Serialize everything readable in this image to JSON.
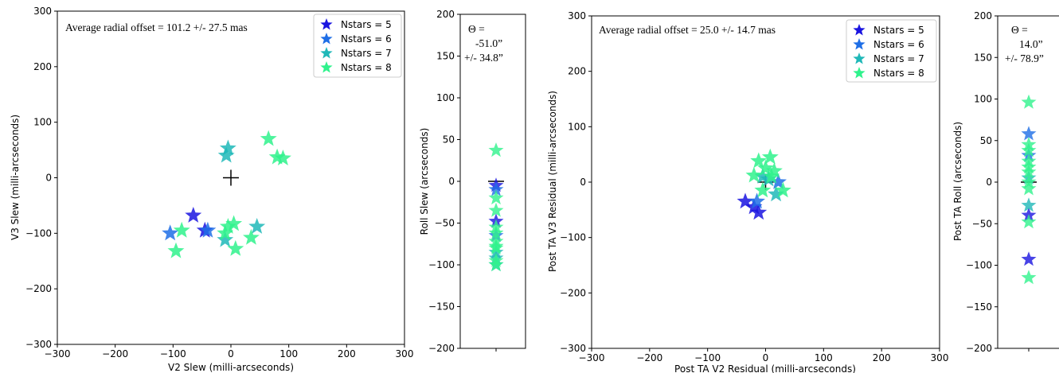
{
  "chart_data": [
    {
      "type": "scatter",
      "panel": "a",
      "xlabel": "V2 Slew (milli-arcseconds)",
      "ylabel": "V3 Slew (milli-arcseconds)",
      "xlim": [
        -300,
        300
      ],
      "ylim": [
        -300,
        300
      ],
      "xticks": [
        "−300",
        "−200",
        "−100",
        "0",
        "100",
        "200",
        "300"
      ],
      "yticks": [
        "300",
        "200",
        "100",
        "0",
        "−100",
        "−200",
        "−300"
      ],
      "annotation": "Average radial offset =  101.2 +/- 27.5 mas",
      "legend_position": "upper right",
      "target_marker": [
        0,
        0
      ],
      "series": [
        {
          "name": "Nstars = 5",
          "color": "#1a14e0",
          "points": [
            [
              -65,
              -68
            ],
            [
              -45,
              -95
            ]
          ]
        },
        {
          "name": "Nstars = 6",
          "color": "#1e6ee6",
          "points": [
            [
              -105,
              -100
            ],
            [
              -40,
              -95
            ]
          ]
        },
        {
          "name": "Nstars = 7",
          "color": "#1fb8b8",
          "points": [
            [
              -5,
              53
            ],
            [
              -8,
              40
            ],
            [
              -10,
              -112
            ],
            [
              45,
              -88
            ]
          ]
        },
        {
          "name": "Nstars = 8",
          "color": "#2ff28c",
          "points": [
            [
              65,
              70
            ],
            [
              80,
              37
            ],
            [
              90,
              35
            ],
            [
              -85,
              -95
            ],
            [
              -95,
              -132
            ],
            [
              -5,
              -88
            ],
            [
              5,
              -83
            ],
            [
              8,
              -128
            ],
            [
              35,
              -108
            ],
            [
              -10,
              -100
            ]
          ]
        }
      ]
    },
    {
      "type": "scatter",
      "panel": "b",
      "ylabel": "Roll Slew (arcseconds)",
      "ylim": [
        -200,
        200
      ],
      "yticks": [
        "200",
        "150",
        "100",
        "50",
        "0",
        "−50",
        "−100",
        "−150",
        "−200"
      ],
      "annotation": [
        "Θ  =",
        "-51.0”",
        "+/- 34.8”"
      ],
      "target_marker": [
        0,
        0
      ],
      "series": [
        {
          "name": "Nstars = 5",
          "color": "#1a14e0",
          "values": [
            -5,
            -48
          ]
        },
        {
          "name": "Nstars = 6",
          "color": "#1e6ee6",
          "values": [
            -10,
            -65
          ]
        },
        {
          "name": "Nstars = 7",
          "color": "#1fb8b8",
          "values": [
            -85,
            -100,
            -92
          ]
        },
        {
          "name": "Nstars = 8",
          "color": "#2ff28c",
          "values": [
            37,
            -20,
            -35,
            -55,
            -62,
            -72,
            -78,
            -80,
            -95,
            -100
          ]
        }
      ]
    },
    {
      "type": "scatter",
      "panel": "c",
      "xlabel": "Post TA V2 Residual (milli-arcseconds)",
      "ylabel": "Post TA V3 Residual (milli-arcseconds)",
      "xlim": [
        -300,
        300
      ],
      "ylim": [
        -300,
        300
      ],
      "xticks": [
        "−300",
        "−200",
        "−100",
        "0",
        "100",
        "200",
        "300"
      ],
      "yticks": [
        "300",
        "200",
        "100",
        "0",
        "−100",
        "−200",
        "−300"
      ],
      "annotation": "Average radial offset =  25.0 +/- 14.7 mas",
      "legend_position": "upper right",
      "target_marker": [
        0,
        0
      ],
      "series": [
        {
          "name": "Nstars = 5",
          "color": "#1a14e0",
          "points": [
            [
              -35,
              -35
            ],
            [
              -12,
              -55
            ],
            [
              -20,
              -45
            ]
          ]
        },
        {
          "name": "Nstars = 6",
          "color": "#1e6ee6",
          "points": [
            [
              22,
              0
            ],
            [
              -15,
              -35
            ]
          ]
        },
        {
          "name": "Nstars = 7",
          "color": "#1fb8b8",
          "points": [
            [
              18,
              -22
            ],
            [
              5,
              5
            ],
            [
              -5,
              10
            ]
          ]
        },
        {
          "name": "Nstars = 8",
          "color": "#2ff28c",
          "points": [
            [
              -12,
              38
            ],
            [
              8,
              45
            ],
            [
              -20,
              12
            ],
            [
              10,
              10
            ],
            [
              30,
              -15
            ],
            [
              15,
              20
            ],
            [
              -5,
              -15
            ],
            [
              0,
              25
            ]
          ]
        }
      ]
    },
    {
      "type": "scatter",
      "panel": "d",
      "ylabel": "Post TA Roll (arcseconds)",
      "ylim": [
        -200,
        200
      ],
      "yticks": [
        "200",
        "150",
        "100",
        "50",
        "0",
        "−50",
        "−100",
        "−150",
        "−200"
      ],
      "annotation": [
        "Θ  =",
        "14.0”",
        "+/- 78.9”"
      ],
      "target_marker": [
        0,
        0
      ],
      "series": [
        {
          "name": "Nstars = 5",
          "color": "#1a14e0",
          "values": [
            -93,
            -40
          ]
        },
        {
          "name": "Nstars = 6",
          "color": "#1e6ee6",
          "values": [
            58,
            32
          ]
        },
        {
          "name": "Nstars = 7",
          "color": "#1fb8b8",
          "values": [
            -28,
            5
          ]
        },
        {
          "name": "Nstars = 8",
          "color": "#2ff28c",
          "values": [
            96,
            45,
            38,
            25,
            18,
            12,
            0,
            -8,
            -48,
            -115
          ]
        }
      ]
    }
  ]
}
